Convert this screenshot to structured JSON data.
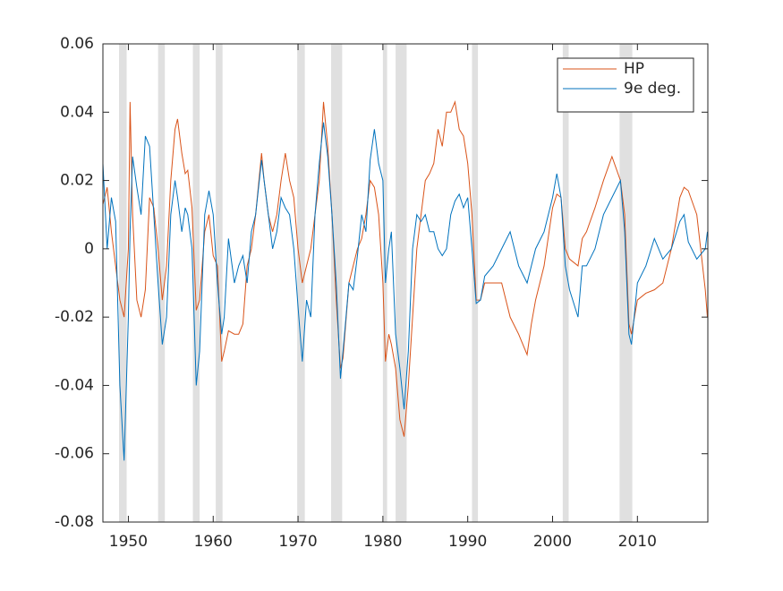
{
  "chart_data": {
    "type": "line",
    "x": [
      1947,
      1947.5,
      1948,
      1948.5,
      1949,
      1949.5,
      1950,
      1950.2,
      1950.5,
      1951,
      1951.5,
      1952,
      1952.5,
      1953,
      1953.5,
      1954,
      1954.5,
      1955,
      1955.5,
      1955.8,
      1956.3,
      1956.7,
      1957,
      1957.5,
      1958,
      1958.4,
      1959,
      1959.5,
      1960,
      1960.5,
      1961,
      1961.3,
      1961.8,
      1962.5,
      1963,
      1963.5,
      1964,
      1964.5,
      1965,
      1965.7,
      1966,
      1966.5,
      1967,
      1967.5,
      1968,
      1968.5,
      1969,
      1969.5,
      1970,
      1970.5,
      1971,
      1971.5,
      1972,
      1972.5,
      1973,
      1973.5,
      1974,
      1974.5,
      1975,
      1975.3,
      1976,
      1976.5,
      1977,
      1977.5,
      1978,
      1978.5,
      1979,
      1979.5,
      1980,
      1980.3,
      1980.7,
      1981,
      1981.5,
      1982,
      1982.5,
      1983,
      1983.5,
      1984,
      1984.5,
      1985,
      1985.5,
      1986,
      1986.5,
      1987,
      1987.5,
      1988,
      1988.5,
      1989,
      1989.5,
      1990,
      1990.5,
      1991,
      1991.5,
      1992,
      1993,
      1994,
      1995,
      1996,
      1997,
      1997.5,
      1998,
      1999,
      2000,
      2000.5,
      2001,
      2001.5,
      2002,
      2003,
      2003.5,
      2004,
      2005,
      2006,
      2007,
      2008,
      2008.5,
      2009,
      2009.3,
      2010,
      2011,
      2012,
      2013,
      2014,
      2015,
      2015.5,
      2016,
      2017,
      2018,
      2018.25
    ],
    "series": [
      {
        "name": "HP",
        "color": "#d95319",
        "values": [
          0.013,
          0.018,
          0.005,
          -0.005,
          -0.015,
          -0.02,
          0.0,
          0.043,
          0.01,
          -0.015,
          -0.02,
          -0.012,
          0.015,
          0.012,
          0.0,
          -0.015,
          -0.005,
          0.02,
          0.035,
          0.038,
          0.028,
          0.022,
          0.023,
          0.012,
          -0.018,
          -0.015,
          0.005,
          0.01,
          -0.002,
          -0.005,
          -0.033,
          -0.03,
          -0.024,
          -0.025,
          -0.025,
          -0.022,
          -0.005,
          0.0,
          0.01,
          0.028,
          0.02,
          0.01,
          0.005,
          0.01,
          0.02,
          0.028,
          0.02,
          0.015,
          0.0,
          -0.01,
          -0.005,
          0.0,
          0.01,
          0.02,
          0.043,
          0.03,
          0.01,
          -0.015,
          -0.035,
          -0.032,
          -0.01,
          -0.005,
          0.0,
          0.003,
          0.01,
          0.02,
          0.018,
          0.01,
          -0.01,
          -0.033,
          -0.025,
          -0.028,
          -0.035,
          -0.05,
          -0.055,
          -0.04,
          -0.02,
          0.0,
          0.01,
          0.02,
          0.022,
          0.025,
          0.035,
          0.03,
          0.04,
          0.04,
          0.043,
          0.035,
          0.033,
          0.025,
          0.01,
          -0.015,
          -0.015,
          -0.01,
          -0.01,
          -0.01,
          -0.02,
          -0.025,
          -0.031,
          -0.022,
          -0.015,
          -0.005,
          0.012,
          0.016,
          0.015,
          0.0,
          -0.003,
          -0.005,
          0.003,
          0.005,
          0.012,
          0.02,
          0.027,
          0.02,
          0.01,
          -0.022,
          -0.025,
          -0.015,
          -0.013,
          -0.012,
          -0.01,
          0.0,
          0.015,
          0.018,
          0.017,
          0.01,
          -0.012,
          -0.02
        ]
      },
      {
        "name": "9e deg.",
        "color": "#0072bd",
        "values": [
          0.025,
          0.0,
          0.015,
          0.008,
          -0.04,
          -0.062,
          -0.02,
          0.005,
          0.027,
          0.018,
          0.01,
          0.033,
          0.03,
          0.01,
          -0.01,
          -0.028,
          -0.02,
          0.01,
          0.02,
          0.015,
          0.005,
          0.012,
          0.01,
          0.0,
          -0.04,
          -0.03,
          0.01,
          0.017,
          0.01,
          -0.01,
          -0.025,
          -0.02,
          0.003,
          -0.01,
          -0.005,
          -0.002,
          -0.01,
          0.005,
          0.01,
          0.026,
          0.02,
          0.01,
          0.0,
          0.005,
          0.015,
          0.012,
          0.01,
          0.0,
          -0.017,
          -0.033,
          -0.015,
          -0.02,
          0.01,
          0.025,
          0.037,
          0.027,
          0.01,
          -0.01,
          -0.038,
          -0.03,
          -0.01,
          -0.012,
          -0.002,
          0.01,
          0.005,
          0.026,
          0.035,
          0.025,
          0.02,
          -0.01,
          0.0,
          0.005,
          -0.025,
          -0.035,
          -0.047,
          -0.03,
          0.0,
          0.01,
          0.008,
          0.01,
          0.005,
          0.005,
          0.0,
          -0.002,
          0.0,
          0.01,
          0.014,
          0.016,
          0.012,
          0.015,
          0.0,
          -0.016,
          -0.015,
          -0.008,
          -0.005,
          0.0,
          0.005,
          -0.005,
          -0.01,
          -0.005,
          0.0,
          0.005,
          0.015,
          0.022,
          0.015,
          -0.005,
          -0.012,
          -0.02,
          -0.005,
          -0.005,
          0.0,
          0.01,
          0.015,
          0.02,
          0.005,
          -0.025,
          -0.028,
          -0.01,
          -0.005,
          0.003,
          -0.003,
          0.0,
          0.008,
          0.01,
          0.002,
          -0.003,
          0.0,
          0.005
        ]
      }
    ],
    "shaded_regions": [
      [
        1948.9,
        1949.8
      ],
      [
        1953.5,
        1954.3
      ],
      [
        1957.6,
        1958.4
      ],
      [
        1960.3,
        1961.1
      ],
      [
        1969.9,
        1970.8
      ],
      [
        1973.9,
        1975.2
      ],
      [
        1980.0,
        1980.5
      ],
      [
        1981.5,
        1982.8
      ],
      [
        1990.5,
        1991.2
      ],
      [
        2001.2,
        2001.9
      ],
      [
        2007.9,
        2009.4
      ]
    ],
    "shade_color": "#e0e0e0",
    "xlim": [
      1947,
      2018.3
    ],
    "xticks": [
      1950,
      1960,
      1970,
      1980,
      1990,
      2000,
      2010
    ],
    "ylim": [
      -0.08,
      0.06
    ],
    "yticks": [
      -0.08,
      -0.06,
      -0.04,
      -0.02,
      0,
      0.02,
      0.04,
      0.06
    ],
    "legend": "top-right"
  }
}
